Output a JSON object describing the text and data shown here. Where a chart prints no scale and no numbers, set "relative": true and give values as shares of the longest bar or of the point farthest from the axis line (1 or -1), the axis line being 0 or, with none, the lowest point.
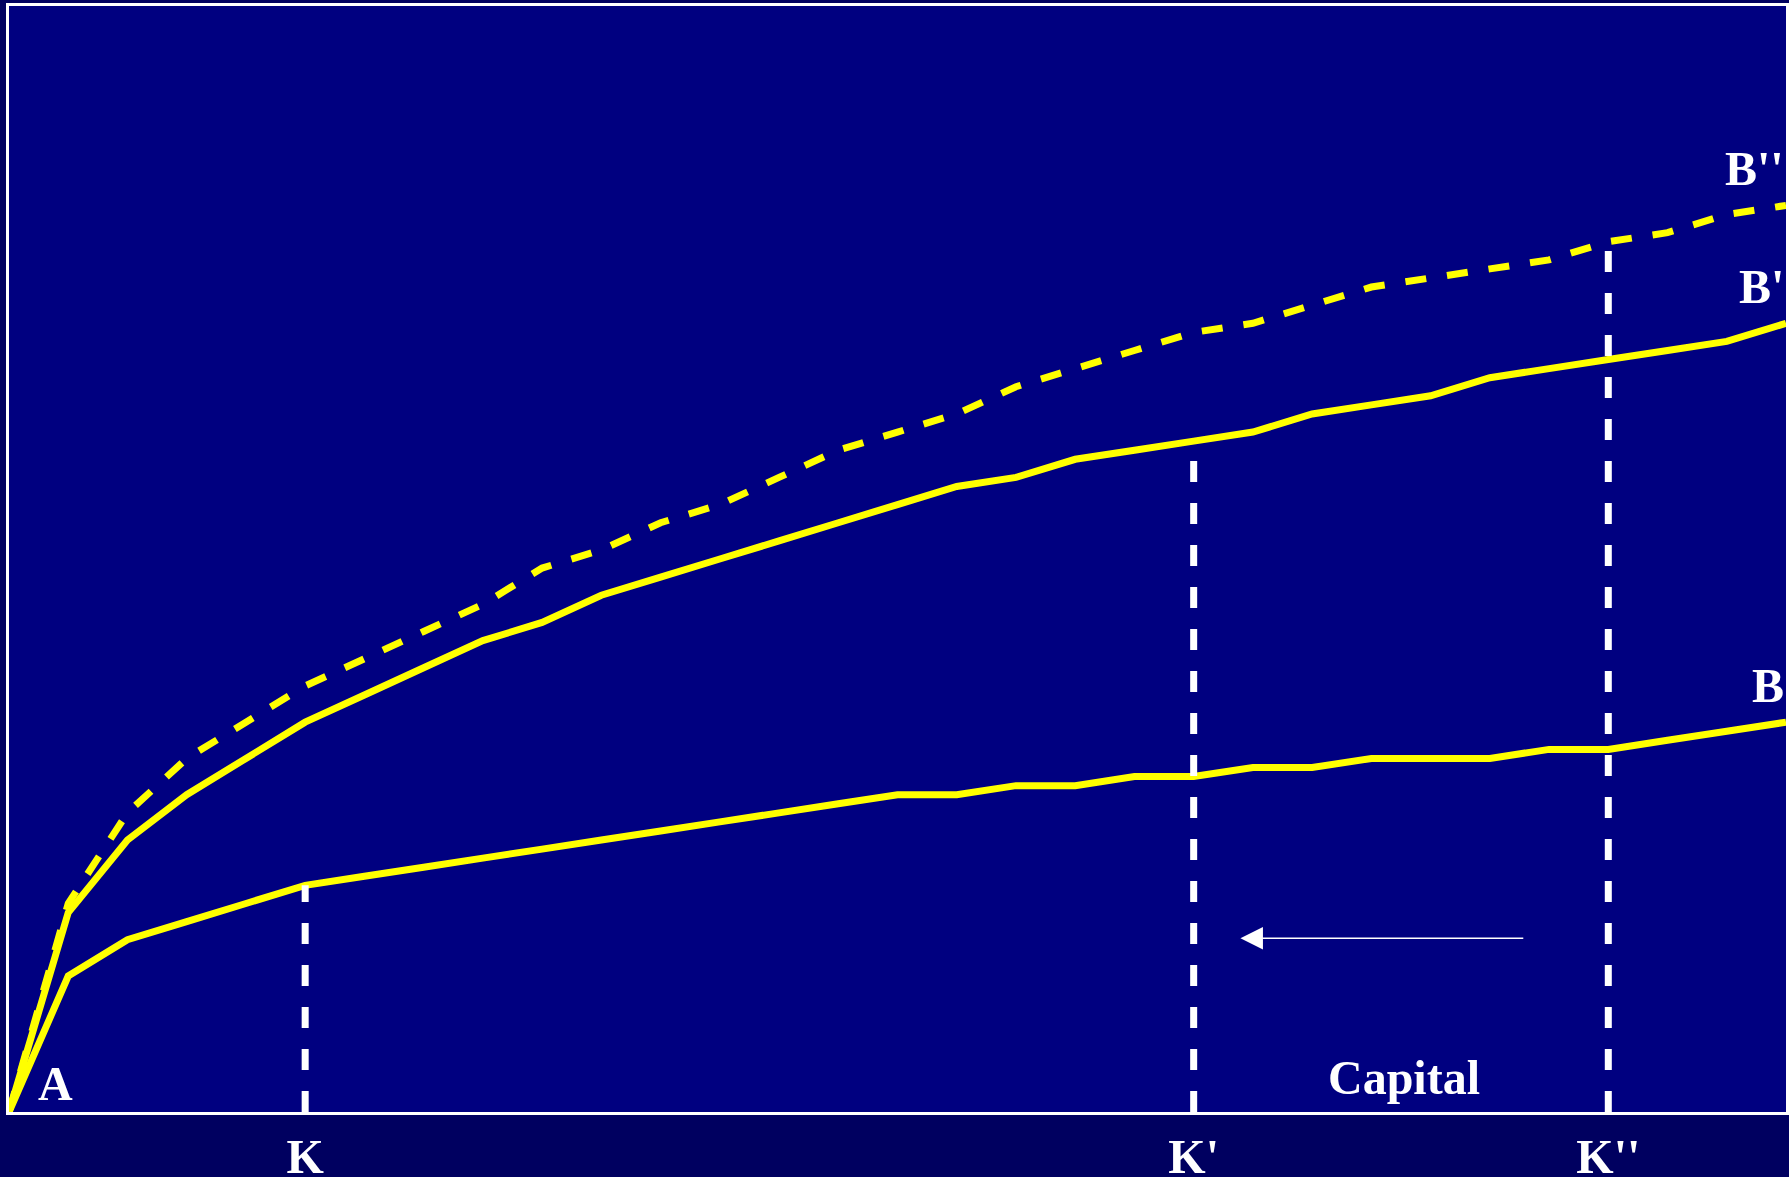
{
  "chart_data": {
    "type": "line",
    "relative": true,
    "xlabel": "Capital",
    "tick_labels": "x",
    "categories": [
      null,
      null,
      null,
      null,
      null,
      "K",
      null,
      null,
      null,
      null,
      null,
      null,
      null,
      null,
      null,
      null,
      null,
      null,
      null,
      null,
      "K'",
      null,
      null,
      null,
      null,
      null,
      null,
      "K''",
      null,
      null,
      null
    ],
    "annotations": [
      "A"
    ],
    "ref_lines": [
      {
        "axis": "x",
        "value": "K",
        "color": "#ffffff",
        "line_style": "dashed"
      },
      {
        "axis": "x",
        "value": "K'",
        "color": "#ffffff",
        "line_style": "dashed"
      },
      {
        "axis": "x",
        "value": "K''",
        "color": "#ffffff",
        "line_style": "dashed"
      }
    ],
    "series": [
      {
        "name": "B''",
        "color": "#ffff00",
        "line_style": "dashed",
        "values": [
          0,
          0.23,
          0.33,
          0.39,
          0.43,
          0.47,
          0.5,
          0.53,
          0.56,
          0.6,
          0.62,
          0.65,
          0.67,
          0.7,
          0.73,
          0.75,
          0.77,
          0.8,
          0.82,
          0.84,
          0.86,
          0.87,
          0.89,
          0.91,
          0.92,
          0.93,
          0.94,
          0.96,
          0.97,
          0.99,
          1
        ]
      },
      {
        "name": "B'",
        "color": "#ffff00",
        "line_style": "solid",
        "values": [
          0,
          0.22,
          0.3,
          0.35,
          0.39,
          0.43,
          0.46,
          0.49,
          0.52,
          0.54,
          0.57,
          0.59,
          0.61,
          0.63,
          0.65,
          0.67,
          0.69,
          0.7,
          0.72,
          0.73,
          0.74,
          0.75,
          0.77,
          0.78,
          0.79,
          0.81,
          0.82,
          0.83,
          0.84,
          0.85,
          0.87
        ]
      },
      {
        "name": "B",
        "color": "#ffff00",
        "line_style": "solid",
        "values": [
          0,
          0.15,
          0.19,
          0.21,
          0.23,
          0.25,
          0.26,
          0.27,
          0.28,
          0.29,
          0.3,
          0.31,
          0.32,
          0.33,
          0.34,
          0.35,
          0.35,
          0.36,
          0.36,
          0.37,
          0.37,
          0.38,
          0.38,
          0.39,
          0.39,
          0.39,
          0.4,
          0.4,
          0.41,
          0.42,
          0.43
        ]
      }
    ]
  }
}
